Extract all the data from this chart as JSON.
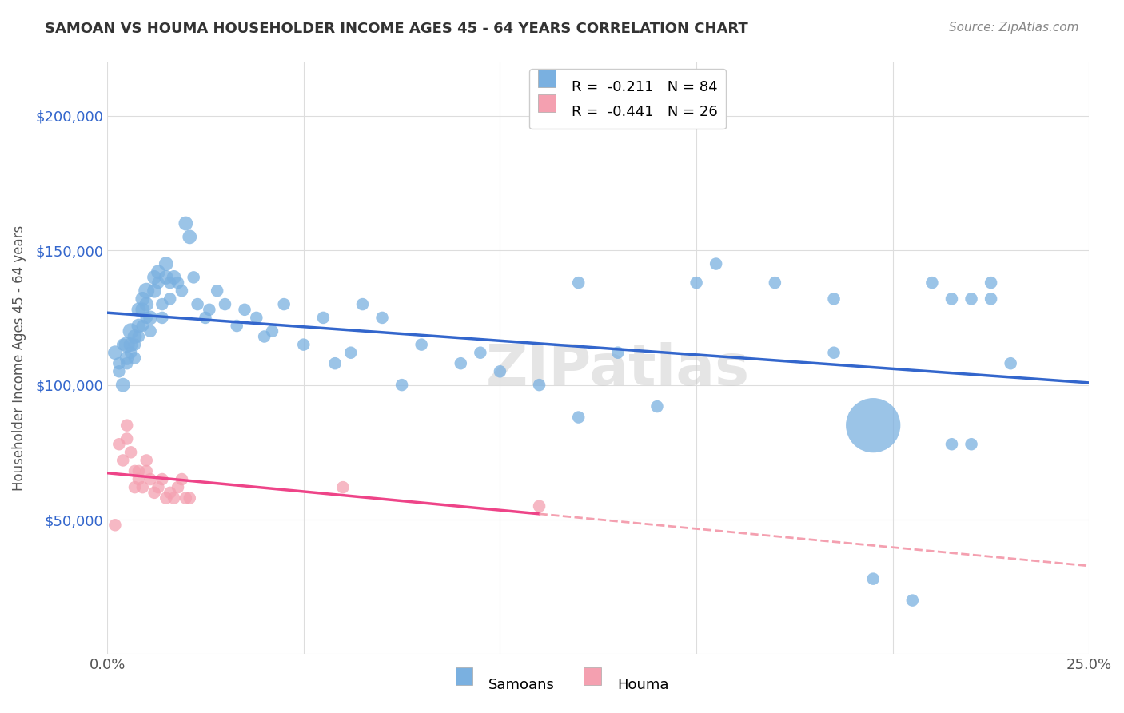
{
  "title": "SAMOAN VS HOUMA HOUSEHOLDER INCOME AGES 45 - 64 YEARS CORRELATION CHART",
  "source": "Source: ZipAtlas.com",
  "xlabel": "",
  "ylabel": "Householder Income Ages 45 - 64 years",
  "xlim": [
    0.0,
    0.25
  ],
  "ylim": [
    0,
    220000
  ],
  "xticks": [
    0.0,
    0.05,
    0.1,
    0.15,
    0.2,
    0.25
  ],
  "xticklabels": [
    "0.0%",
    "",
    "",
    "",
    "",
    "25.0%"
  ],
  "ytick_positions": [
    0,
    50000,
    100000,
    150000,
    200000
  ],
  "ytick_labels": [
    "",
    "$50,000",
    "$100,000",
    "$150,000",
    "$200,000"
  ],
  "background_color": "#ffffff",
  "grid_color": "#dddddd",
  "watermark": "ZIPatlas",
  "legend_r1": "R = ",
  "legend_v1": "-0.211",
  "legend_n1": "N = ",
  "legend_nv1": "84",
  "legend_r2": "R = ",
  "legend_v2": "-0.441",
  "legend_n2": "N = ",
  "legend_nv2": "26",
  "samoan_color": "#7ab0e0",
  "houma_color": "#f4a0b0",
  "samoan_line_color": "#3366cc",
  "houma_line_color": "#ee4488",
  "houma_dash_color": "#f4a0b0",
  "samoan_x": [
    0.002,
    0.003,
    0.003,
    0.004,
    0.004,
    0.005,
    0.005,
    0.005,
    0.006,
    0.006,
    0.006,
    0.007,
    0.007,
    0.007,
    0.008,
    0.008,
    0.008,
    0.009,
    0.009,
    0.009,
    0.01,
    0.01,
    0.01,
    0.011,
    0.011,
    0.012,
    0.012,
    0.013,
    0.013,
    0.014,
    0.014,
    0.015,
    0.015,
    0.016,
    0.016,
    0.017,
    0.018,
    0.019,
    0.02,
    0.021,
    0.022,
    0.023,
    0.025,
    0.026,
    0.028,
    0.03,
    0.033,
    0.035,
    0.038,
    0.04,
    0.042,
    0.045,
    0.05,
    0.055,
    0.058,
    0.062,
    0.065,
    0.07,
    0.075,
    0.08,
    0.09,
    0.095,
    0.1,
    0.11,
    0.12,
    0.13,
    0.14,
    0.155,
    0.17,
    0.185,
    0.195,
    0.205,
    0.21,
    0.215,
    0.215,
    0.22,
    0.22,
    0.225,
    0.225,
    0.23,
    0.195,
    0.185,
    0.15,
    0.12
  ],
  "samoan_y": [
    112000,
    108000,
    105000,
    115000,
    100000,
    115000,
    110000,
    108000,
    120000,
    115000,
    112000,
    118000,
    115000,
    110000,
    128000,
    122000,
    118000,
    132000,
    128000,
    122000,
    135000,
    130000,
    125000,
    125000,
    120000,
    140000,
    135000,
    142000,
    138000,
    130000,
    125000,
    145000,
    140000,
    138000,
    132000,
    140000,
    138000,
    135000,
    160000,
    155000,
    140000,
    130000,
    125000,
    128000,
    135000,
    130000,
    122000,
    128000,
    125000,
    118000,
    120000,
    130000,
    115000,
    125000,
    108000,
    112000,
    130000,
    125000,
    100000,
    115000,
    108000,
    112000,
    105000,
    100000,
    88000,
    112000,
    92000,
    145000,
    138000,
    132000,
    28000,
    20000,
    138000,
    132000,
    78000,
    132000,
    78000,
    138000,
    132000,
    108000,
    85000,
    112000,
    138000,
    138000
  ],
  "samoan_size": [
    30,
    25,
    25,
    25,
    30,
    35,
    30,
    25,
    35,
    30,
    25,
    30,
    25,
    25,
    30,
    30,
    25,
    30,
    30,
    25,
    35,
    30,
    25,
    30,
    25,
    30,
    30,
    30,
    25,
    25,
    25,
    30,
    30,
    25,
    25,
    30,
    25,
    25,
    30,
    30,
    25,
    25,
    25,
    25,
    25,
    25,
    25,
    25,
    25,
    25,
    25,
    25,
    25,
    25,
    25,
    25,
    25,
    25,
    25,
    25,
    25,
    25,
    25,
    25,
    25,
    25,
    25,
    25,
    25,
    25,
    25,
    25,
    25,
    25,
    25,
    25,
    25,
    25,
    25,
    25,
    180,
    25,
    25,
    25
  ],
  "houma_x": [
    0.002,
    0.003,
    0.004,
    0.005,
    0.005,
    0.006,
    0.007,
    0.007,
    0.008,
    0.008,
    0.009,
    0.01,
    0.01,
    0.011,
    0.012,
    0.013,
    0.014,
    0.015,
    0.016,
    0.017,
    0.018,
    0.019,
    0.02,
    0.021,
    0.06,
    0.11
  ],
  "houma_y": [
    48000,
    78000,
    72000,
    85000,
    80000,
    75000,
    68000,
    62000,
    68000,
    65000,
    62000,
    72000,
    68000,
    65000,
    60000,
    62000,
    65000,
    58000,
    60000,
    58000,
    62000,
    65000,
    58000,
    58000,
    62000,
    55000
  ],
  "houma_size": [
    25,
    25,
    25,
    25,
    25,
    25,
    25,
    25,
    25,
    25,
    25,
    25,
    25,
    25,
    25,
    25,
    25,
    25,
    25,
    25,
    25,
    25,
    25,
    25,
    25,
    25
  ]
}
